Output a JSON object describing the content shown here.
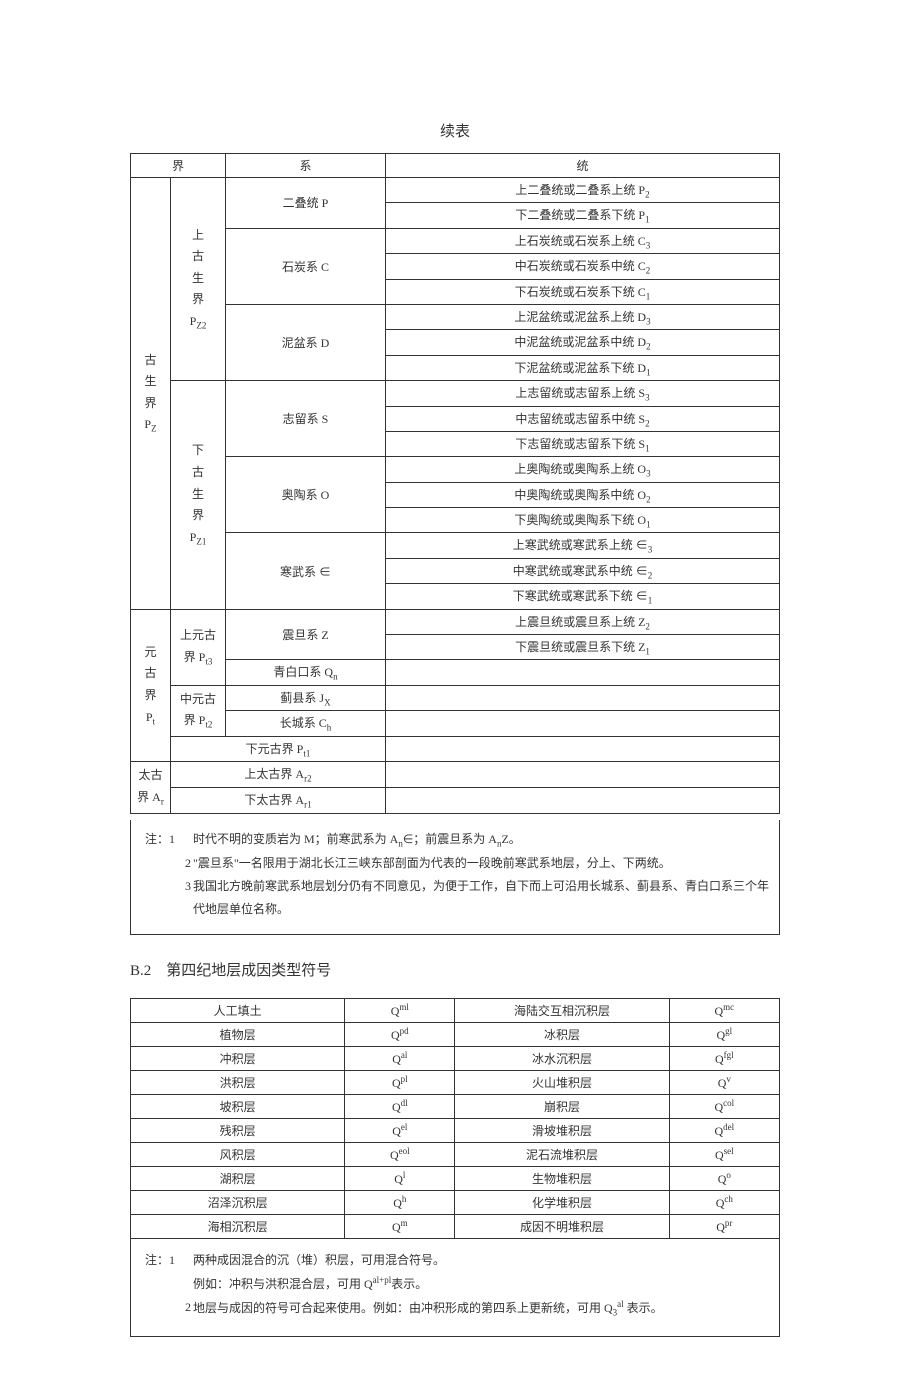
{
  "continue_label": "续表",
  "table1": {
    "head": {
      "jie": "界",
      "xi": "系",
      "tong": "统"
    },
    "paleo": {
      "era_label": "古<br>生<br>界<br>P<sub>Z</sub>",
      "upper": {
        "sub_era": "上<br>古<br>生<br>界<br>P<sub>Z2</sub>",
        "permian": {
          "system": "二叠统 P",
          "upper": "上二叠统或二叠系上统 P<sub>2</sub>",
          "lower": "下二叠统或二叠系下统 P<sub>1</sub>"
        },
        "carbon": {
          "system": "石炭系 C",
          "upper": "上石炭统或石炭系上统 C<sub>3</sub>",
          "middle": "中石炭统或石炭系中统 C<sub>2</sub>",
          "lower": "下石炭统或石炭系下统 C<sub>1</sub>"
        },
        "devon": {
          "system": "泥盆系 D",
          "upper": "上泥盆统或泥盆系上统 D<sub>3</sub>",
          "middle": "中泥盆统或泥盆系中统 D<sub>2</sub>",
          "lower": "下泥盆统或泥盆系下统 D<sub>1</sub>"
        }
      },
      "lower": {
        "sub_era": "下<br>古<br>生<br>界<br>P<sub>Z1</sub>",
        "silur": {
          "system": "志留系 S",
          "upper": "上志留统或志留系上统 S<sub>3</sub>",
          "middle": "中志留统或志留系中统 S<sub>2</sub>",
          "lower": "下志留统或志留系下统 S<sub>1</sub>"
        },
        "ordo": {
          "system": "奥陶系 O",
          "upper": "上奥陶统或奥陶系上统 O<sub>3</sub>",
          "middle": "中奥陶统或奥陶系中统 O<sub>2</sub>",
          "lower": "下奥陶统或奥陶系下统 O<sub>1</sub>"
        },
        "camb": {
          "system": "寒武系 ∈",
          "upper": "上寒武统或寒武系上统 ∈<sub>3</sub>",
          "middle": "中寒武统或寒武系中统 ∈<sub>2</sub>",
          "lower": "下寒武统或寒武系下统 ∈<sub>1</sub>"
        }
      }
    },
    "protero": {
      "era_label": "元<br>古<br>界<br>P<sub>t</sub>",
      "upper_label": "上元古<br>界 P<sub>t3</sub>",
      "sinian": {
        "system": "震旦系 Z",
        "upper": "上震旦统或震旦系上统 Z<sub>2</sub>",
        "lower": "下震旦统或震旦系下统 Z<sub>1</sub>"
      },
      "qingbaikou": "青白口系 Q<sub>n</sub>",
      "mid_label": "中元古<br>界 P<sub>t2</sub>",
      "jixian": "蓟县系 J<sub>X</sub>",
      "changcheng": "长城系 C<sub>h</sub>",
      "lower_protero": "下元古界 P<sub>t1</sub>"
    },
    "archean": {
      "label": "太古<br>界 A<sub>r</sub>",
      "upper": "上太古界 A<sub>r2</sub>",
      "lower": "下太古界 A<sub>r1</sub>"
    }
  },
  "notes1": {
    "label": "注：",
    "n1_idx": "1",
    "n1": "时代不明的变质岩为 M；前寒武系为 A<sub>n</sub>∈；前震旦系为 A<sub>n</sub>Z。",
    "n2_idx": "2",
    "n2": "\"震旦系\"一名限用于湖北长江三峡东部剖面为代表的一段晚前寒武系地层，分上、下两统。",
    "n3_idx": "3",
    "n3": "我国北方晚前寒武系地层划分仍有不同意见，为便于工作，自下而上可沿用长城系、蓟县系、青白口系三个年代地层单位名称。"
  },
  "section_b2": "B.2　第四纪地层成因类型符号",
  "table2_rows": [
    [
      "人工填土",
      "Q<sup>ml</sup>",
      "海陆交互相沉积层",
      "Q<sup>mc</sup>"
    ],
    [
      "植物层",
      "Q<sup>pd</sup>",
      "冰积层",
      "Q<sup>gl</sup>"
    ],
    [
      "冲积层",
      "Q<sup>al</sup>",
      "冰水沉积层",
      "Q<sup>fgl</sup>"
    ],
    [
      "洪积层",
      "Q<sup>pl</sup>",
      "火山堆积层",
      "Q<sup>v</sup>"
    ],
    [
      "坡积层",
      "Q<sup>dl</sup>",
      "崩积层",
      "Q<sup>col</sup>"
    ],
    [
      "残积层",
      "Q<sup>el</sup>",
      "滑坡堆积层",
      "Q<sup>del</sup>"
    ],
    [
      "风积层",
      "Q<sup>eol</sup>",
      "泥石流堆积层",
      "Q<sup>sel</sup>"
    ],
    [
      "湖积层",
      "Q<sup>l</sup>",
      "生物堆积层",
      "Q<sup>o</sup>"
    ],
    [
      "沼泽沉积层",
      "Q<sup>h</sup>",
      "化学堆积层",
      "Q<sup>ch</sup>"
    ],
    [
      "海相沉积层",
      "Q<sup>m</sup>",
      "成因不明堆积层",
      "Q<sup>pr</sup>"
    ]
  ],
  "notes2": {
    "label": "注：",
    "n1_idx": "1",
    "n1a": "两种成因混合的沉（堆）积层，可用混合符号。",
    "n1b": "例如：冲积与洪积混合层，可用 Q<sup>al+pl</sup>表示。",
    "n2_idx": "2",
    "n2": "地层与成因的符号可合起来使用。例如：由冲积形成的第四系上更新统，可用 Q<sub>3</sub><sup>al</sup> 表示。"
  }
}
